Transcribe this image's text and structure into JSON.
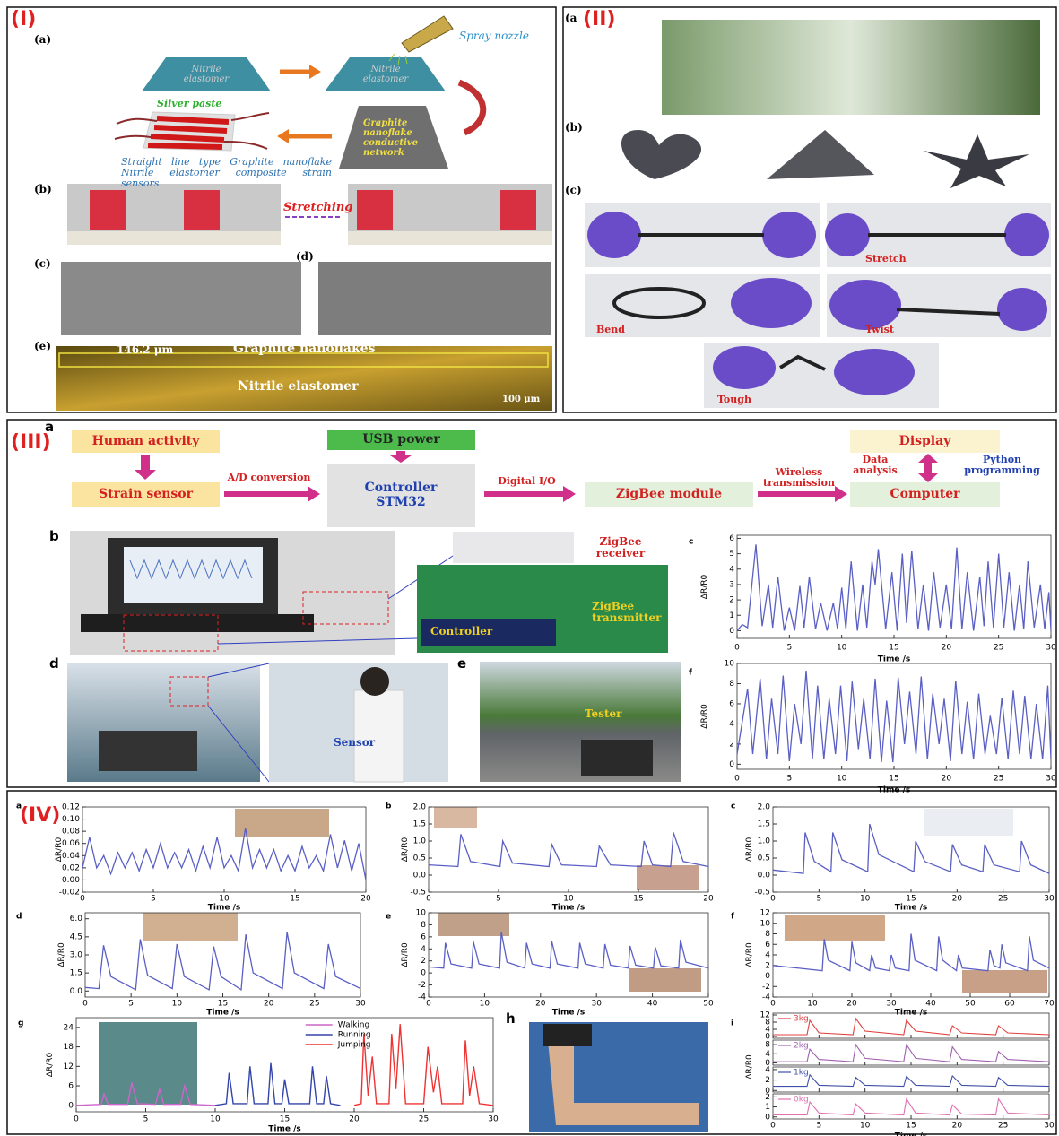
{
  "panel_1": {
    "tag": "(I)",
    "a": "(a)",
    "nitrile_1": "Nitrile elastomer",
    "nitrile_2": "Nitrile elastomer",
    "nozzle": "Spray nozzle",
    "network": "Graphite nanoflake conductive network",
    "silver": "Silver paste",
    "sensor": "Straight line type Graphite nanoflake Nitrile elastomer composite strain sensors",
    "b": "(b)",
    "stretching": "Stretching",
    "c": "(c)",
    "d": "(d)",
    "e": "(e)",
    "thickness": "146.2 μm",
    "layer_top": "Graphite nanoflakes",
    "layer_bottom": "Nitrile elastomer",
    "scale": "100 μm"
  },
  "panel_2": {
    "a": "(a",
    "tag": "(II)",
    "b": "(b)",
    "c": "(c)",
    "stretch": "Stretch",
    "bend": "Bend",
    "twist": "Twist",
    "tough": "Tough"
  },
  "panel_3": {
    "tag": "(III)",
    "a": "a",
    "human_activity": "Human activity",
    "strain_sensor": "Strain sensor",
    "ad": "A/D conversion",
    "usb": "USB power",
    "controller_box": "Controller STM32",
    "digital": "Digital I/O",
    "zigbee_module": "ZigBee module",
    "wireless": "Wireless transmission",
    "display": "Display",
    "data_analysis": "Data analysis",
    "python": "Python programming",
    "computer": "Computer",
    "b": "b",
    "zigbee_receiver": "ZigBee receiver",
    "controller": "Controller",
    "zigbee_transmitter": "ZigBee transmitter",
    "d": "d",
    "sensor": "Sensor",
    "e": "e",
    "tester": "Tester"
  },
  "panel_4": {
    "tag": "(IV)",
    "h": "h"
  },
  "chart_data": [
    {
      "type": "line",
      "label": "c",
      "ylabel": "ΔR/R0",
      "xlabel": "Time /s",
      "color": "#5a5fc4",
      "xlim": [
        0,
        30
      ],
      "xticks": [
        0,
        5,
        10,
        15,
        20,
        25,
        30
      ],
      "ylim": [
        -0.5,
        6.2
      ],
      "yticks": [
        0,
        1,
        2,
        3,
        4,
        5,
        6
      ],
      "x": [
        0,
        0.5,
        1,
        1.8,
        2.4,
        3,
        3.4,
        3.9,
        4.5,
        5,
        5.5,
        6,
        6.4,
        6.9,
        7.5,
        8,
        8.6,
        9.2,
        9.6,
        10,
        10.4,
        10.9,
        11.5,
        12,
        12.4,
        12.9,
        13.2,
        13.5,
        14.2,
        14.8,
        15.3,
        15.8,
        16.2,
        16.7,
        17.3,
        17.8,
        18.3,
        18.8,
        19.4,
        20,
        20.5,
        21,
        21.5,
        22,
        22.6,
        23.2,
        23.6,
        24,
        24.5,
        25,
        25.5,
        26,
        26.5,
        27,
        27.4,
        27.8,
        28.4,
        29,
        29.4,
        29.8,
        30
      ],
      "values": [
        0,
        0.4,
        0.2,
        5.6,
        0.3,
        3.0,
        0.2,
        3.5,
        0,
        1.5,
        0,
        2.9,
        0.2,
        3.5,
        0.1,
        1.8,
        0,
        1.8,
        0.1,
        2.8,
        0.1,
        4.5,
        0,
        3.0,
        0.2,
        4.5,
        3.0,
        5.3,
        0.1,
        3.8,
        0,
        5.0,
        0.5,
        5.2,
        0.1,
        3.0,
        0,
        3.8,
        0.2,
        3.0,
        0.1,
        5.4,
        0.1,
        3.8,
        0,
        3.5,
        0.3,
        4.5,
        0.2,
        5.0,
        0.2,
        3.8,
        0,
        3.0,
        0.1,
        4.5,
        0.2,
        3.0,
        0.1,
        2.5,
        0
      ]
    },
    {
      "type": "line",
      "label": "f",
      "ylabel": "ΔR/R0",
      "xlabel": "Time /s",
      "color": "#5a5fc4",
      "xlim": [
        0,
        30
      ],
      "xticks": [
        0,
        5,
        10,
        15,
        20,
        25,
        30
      ],
      "ylim": [
        -0.5,
        10
      ],
      "yticks": [
        0,
        2,
        4,
        6,
        8,
        10
      ],
      "x": [
        0,
        1,
        1.5,
        2.2,
        2.8,
        3.3,
        3.9,
        4.4,
        5,
        5.5,
        6.1,
        6.6,
        7.2,
        7.7,
        8.3,
        8.8,
        9.4,
        9.9,
        10.5,
        11,
        11.6,
        12.1,
        12.7,
        13.2,
        13.8,
        14.3,
        14.9,
        15.4,
        16,
        16.5,
        17.1,
        17.6,
        18.2,
        18.7,
        19.3,
        19.8,
        20.4,
        20.9,
        21.5,
        22,
        22.6,
        23.1,
        23.7,
        24.2,
        24.8,
        25.3,
        25.9,
        26.4,
        27,
        27.5,
        28.1,
        28.6,
        29.2,
        29.7,
        30
      ],
      "values": [
        1,
        7.5,
        1,
        8.5,
        0.5,
        6.5,
        1,
        8.8,
        0.3,
        6.0,
        2,
        9.3,
        0.5,
        7.8,
        0.5,
        6.5,
        1,
        7.8,
        0.3,
        8.2,
        1.5,
        6.5,
        0.5,
        8.5,
        0.2,
        6.3,
        0.2,
        8.6,
        2,
        7.2,
        1,
        8.7,
        0.5,
        7.0,
        2,
        6.5,
        0.3,
        8.3,
        1,
        6.2,
        0.5,
        7.0,
        1,
        4.8,
        1,
        6.6,
        0.5,
        7.3,
        1,
        6.8,
        0.5,
        6.0,
        0.5,
        7.8,
        0.5
      ]
    },
    {
      "type": "line",
      "label": "a",
      "ylabel": "ΔR/R0",
      "xlabel": "Time /s",
      "color": "#5a5fc4",
      "xlim": [
        0,
        20
      ],
      "xticks": [
        0,
        5,
        10,
        15,
        20
      ],
      "ylim": [
        -0.02,
        0.12
      ],
      "yticks": [
        -0.02,
        {
          "value": 0,
          "label": "0.00"
        },
        0.02,
        0.04,
        0.06,
        0.08,
        {
          "value": 0.1,
          "label": "0.10"
        },
        0.12
      ],
      "x": [
        0,
        0.5,
        1,
        1.5,
        2,
        2.5,
        3,
        3.5,
        4,
        4.5,
        5,
        5.5,
        6,
        6.5,
        7,
        7.5,
        8,
        8.5,
        9,
        9.5,
        10,
        10.5,
        11,
        11.5,
        12,
        12.5,
        13,
        13.5,
        14,
        14.5,
        15,
        15.5,
        16,
        16.5,
        17,
        17.5,
        18,
        18.5,
        19,
        19.5,
        20
      ],
      "values": [
        0.02,
        0.07,
        0.02,
        0.04,
        0.01,
        0.045,
        0.02,
        0.045,
        0.015,
        0.05,
        0.02,
        0.06,
        0.02,
        0.045,
        0.02,
        0.05,
        0.015,
        0.055,
        0.02,
        0.07,
        0.02,
        0.04,
        0.015,
        0.085,
        0.02,
        0.05,
        0.02,
        0.05,
        0.015,
        0.04,
        0.015,
        0.055,
        0.02,
        0.04,
        0.015,
        0.075,
        0.02,
        0.065,
        0.015,
        0.06,
        0
      ]
    },
    {
      "type": "line",
      "label": "b",
      "ylabel": "ΔR/R0",
      "xlabel": "Time /s",
      "color": "#5a5fc4",
      "xlim": [
        0,
        20
      ],
      "xticks": [
        0,
        5,
        10,
        15,
        20
      ],
      "ylim": [
        -0.5,
        2
      ],
      "yticks": [
        -0.5,
        {
          "value": 0,
          "label": "0.0"
        },
        0.5,
        {
          "value": 1,
          "label": "1.0"
        },
        1.5,
        {
          "value": 2,
          "label": "2.0"
        }
      ],
      "x": [
        0,
        2.1,
        2.3,
        3,
        5.1,
        5.3,
        6,
        8.6,
        8.8,
        9.5,
        12,
        12.2,
        13,
        15.2,
        15.4,
        16,
        17.3,
        17.5,
        18.2,
        20
      ],
      "values": [
        0.3,
        0.25,
        1.2,
        0.4,
        0.25,
        1.0,
        0.35,
        0.25,
        0.9,
        0.3,
        0.25,
        0.85,
        0.3,
        0.25,
        1.0,
        0.3,
        0.25,
        1.25,
        0.4,
        0.25
      ]
    },
    {
      "type": "line",
      "label": "c",
      "ylabel": "ΔR/R0",
      "xlabel": "Time /s",
      "color": "#5a5fc4",
      "xlim": [
        0,
        30
      ],
      "xticks": [
        0,
        5,
        10,
        15,
        20,
        25,
        30
      ],
      "ylim": [
        -0.5,
        2
      ],
      "yticks": [
        -0.5,
        {
          "value": 0,
          "label": "0.0"
        },
        0.5,
        {
          "value": 1,
          "label": "1.0"
        },
        1.5,
        {
          "value": 2,
          "label": "2.0"
        }
      ],
      "x": [
        0,
        3.3,
        3.5,
        4.5,
        6.3,
        6.5,
        7.5,
        10.3,
        10.5,
        11.5,
        15.3,
        15.5,
        16.5,
        19.3,
        19.5,
        20.5,
        22.8,
        23,
        24,
        26.8,
        27,
        28,
        30
      ],
      "values": [
        0.15,
        0.05,
        1.25,
        0.4,
        0.1,
        1.25,
        0.45,
        0.1,
        1.5,
        0.6,
        0.1,
        1.0,
        0.4,
        0.1,
        0.9,
        0.3,
        0.1,
        0.9,
        0.3,
        0.1,
        1.0,
        0.3,
        0.05
      ]
    },
    {
      "type": "line",
      "label": "d",
      "ylabel": "ΔR/R0",
      "xlabel": "Time /s",
      "color": "#5a5fc4",
      "xlim": [
        0,
        30
      ],
      "xticks": [
        0,
        5,
        10,
        15,
        20,
        25,
        30
      ],
      "ylim": [
        -0.5,
        6.5
      ],
      "yticks": [
        {
          "value": 0,
          "label": "0.0"
        },
        1.5,
        {
          "value": 3,
          "label": "3.0"
        },
        4.5,
        {
          "value": 6,
          "label": "6.0"
        }
      ],
      "x": [
        0,
        1.5,
        2,
        2.8,
        5.5,
        6,
        6.8,
        9.5,
        10,
        10.8,
        13.5,
        14,
        14.8,
        17,
        17.5,
        18.3,
        21.5,
        22,
        22.8,
        26,
        26.5,
        27.3,
        30
      ],
      "values": [
        0.3,
        0.2,
        3.8,
        1.2,
        0.1,
        4.3,
        1.3,
        0.2,
        3.9,
        1.2,
        0.1,
        3.7,
        1.2,
        0.1,
        4.7,
        1.5,
        0.2,
        4.9,
        1.5,
        0.2,
        3.9,
        1.2,
        0.2
      ]
    },
    {
      "type": "line",
      "label": "e",
      "ylabel": "ΔR/R0",
      "xlabel": "Time /s",
      "color": "#5a5fc4",
      "xlim": [
        0,
        50
      ],
      "xticks": [
        0,
        10,
        20,
        30,
        40,
        50
      ],
      "ylim": [
        -4,
        10
      ],
      "yticks": [
        -4,
        -2,
        0,
        2,
        4,
        6,
        8,
        10
      ],
      "x": [
        0,
        2.7,
        3,
        4,
        7.7,
        8,
        9,
        12.7,
        13,
        14,
        17.2,
        17.5,
        18.5,
        21.7,
        22,
        23,
        26.7,
        27,
        28,
        31.2,
        31.5,
        32.5,
        35.7,
        36,
        37,
        40.2,
        40.5,
        41.5,
        44.7,
        45,
        46,
        50
      ],
      "values": [
        1,
        0.8,
        5,
        1.5,
        0.8,
        5.2,
        1.5,
        0.8,
        6.8,
        1.8,
        0.8,
        5.0,
        1.5,
        0.8,
        5.3,
        1.5,
        0.8,
        5.0,
        1.5,
        0.8,
        4.8,
        1.3,
        0.8,
        4.5,
        1.3,
        0.8,
        4.3,
        1.2,
        0.8,
        5.5,
        1.8,
        0.8
      ]
    },
    {
      "type": "line",
      "label": "f",
      "ylabel": "ΔR/R0",
      "xlabel": "Time /s",
      "color": "#5a5fc4",
      "xlim": [
        0,
        70
      ],
      "xticks": [
        0,
        10,
        20,
        30,
        40,
        50,
        60,
        70
      ],
      "ylim": [
        -4,
        12
      ],
      "yticks": [
        -4,
        -2,
        0,
        2,
        4,
        6,
        8,
        10,
        12
      ],
      "x": [
        0,
        12.5,
        13,
        14,
        19.5,
        20,
        21,
        24.5,
        25,
        26,
        29.5,
        30,
        31,
        34.5,
        35,
        36,
        41.5,
        42,
        43,
        46.5,
        47,
        48,
        54.5,
        55,
        56,
        57.5,
        58,
        59,
        64.5,
        65,
        66,
        70
      ],
      "values": [
        2,
        1,
        7,
        3,
        1,
        6.5,
        2.5,
        1,
        4,
        1.5,
        1,
        4,
        1.5,
        1,
        8,
        3,
        1,
        7.5,
        3,
        1,
        4,
        1.5,
        1,
        5,
        2,
        1.5,
        6,
        2.5,
        1,
        7.5,
        3,
        1.5
      ]
    },
    {
      "type": "line",
      "label": "g",
      "ylabel": "ΔR/R0",
      "xlabel": "Time /s",
      "xlim": [
        0,
        30
      ],
      "xticks": [
        0,
        5,
        10,
        15,
        20,
        25,
        30
      ],
      "ylim": [
        -2,
        27
      ],
      "yticks": [
        0,
        6,
        12,
        18,
        24
      ],
      "series": [
        {
          "name": "Walking",
          "color": "#cc66cc",
          "x": [
            0,
            1.8,
            2,
            2.3,
            3.7,
            4,
            4.4,
            5.7,
            6,
            6.3,
            7.5,
            7.8,
            8.2,
            10
          ],
          "values": [
            0,
            0.3,
            3.5,
            0.3,
            0.3,
            7,
            0.5,
            0.3,
            5,
            0.3,
            0.3,
            6,
            0.3,
            0
          ]
        },
        {
          "name": "Running",
          "color": "#3344aa",
          "x": [
            10,
            10.8,
            11,
            11.3,
            12.3,
            12.5,
            12.8,
            13.8,
            14,
            14.3,
            14.8,
            15,
            15.3,
            16.8,
            17,
            17.3,
            17.8,
            18,
            18.3,
            19
          ],
          "values": [
            0,
            0.5,
            10,
            0.5,
            0.5,
            12,
            0.5,
            0.5,
            13,
            0.5,
            0.5,
            8,
            0.5,
            0.5,
            12,
            0.5,
            0.5,
            9,
            0.5,
            0
          ]
        },
        {
          "name": "Jumping",
          "color": "#ee3333",
          "x": [
            20,
            20.5,
            20.7,
            21,
            21.3,
            21.6,
            22.5,
            22.7,
            23,
            23.3,
            23.7,
            25,
            25.3,
            25.7,
            26,
            26.3,
            27.8,
            28,
            28.3,
            28.6,
            29,
            30
          ],
          "values": [
            0,
            0.5,
            22,
            3,
            15,
            0.5,
            0.5,
            22,
            5,
            25,
            0.5,
            0.5,
            18,
            4,
            12,
            0.5,
            0.5,
            20,
            3,
            12,
            0.5,
            0
          ]
        }
      ]
    },
    {
      "type": "stacked_line",
      "label": "i",
      "ylabel": "ΔR/R0",
      "xlabel": "Time /s",
      "xlim": [
        0,
        30
      ],
      "xticks": [
        0,
        5,
        10,
        15,
        20,
        25,
        30
      ],
      "series": [
        {
          "name": "3kg",
          "color": "#e04040",
          "ylim": [
            -1,
            13
          ],
          "yticks": [
            0,
            4,
            8,
            12
          ],
          "x": [
            0,
            3.7,
            4,
            5,
            8.7,
            9,
            10,
            14.2,
            14.5,
            15.5,
            19.2,
            19.5,
            20.5,
            24.2,
            24.5,
            25.5,
            30
          ],
          "values": [
            1,
            1,
            9,
            2,
            1,
            10,
            3,
            1,
            9,
            3,
            1,
            6,
            2,
            1,
            6,
            2,
            1
          ]
        },
        {
          "name": "2kg",
          "color": "#a060b0",
          "ylim": [
            -1,
            10
          ],
          "yticks": [
            0,
            4,
            8
          ],
          "x": [
            0,
            3.7,
            4,
            5,
            8.7,
            9,
            10,
            14.2,
            14.5,
            15.5,
            19.2,
            19.5,
            20.5,
            24.2,
            24.5,
            25.5,
            30
          ],
          "values": [
            0.5,
            0.5,
            6,
            1.5,
            0.5,
            8,
            2,
            0.5,
            8,
            2,
            0.5,
            7,
            1.5,
            0.5,
            5,
            1.5,
            0.5
          ]
        },
        {
          "name": "1kg",
          "color": "#4050a8",
          "ylim": [
            -0.3,
            4.5
          ],
          "yticks": [
            0,
            2,
            4
          ],
          "x": [
            0,
            3.7,
            4,
            5,
            8.7,
            9,
            10,
            14.2,
            14.5,
            15.5,
            19.2,
            19.5,
            20.5,
            24.2,
            24.5,
            25.5,
            30
          ],
          "values": [
            0.8,
            0.8,
            3,
            1,
            0.8,
            2.5,
            1,
            0.8,
            2.7,
            1,
            0.8,
            2.8,
            1,
            0.8,
            2.5,
            1,
            0.8
          ]
        },
        {
          "name": "0kg",
          "color": "#e070b0",
          "ylim": [
            -0.2,
            2.3
          ],
          "yticks": [
            0,
            1,
            2
          ],
          "x": [
            0,
            3.7,
            4,
            5,
            8.7,
            9,
            10,
            14.2,
            14.5,
            15.5,
            19.2,
            19.5,
            20.5,
            24.2,
            24.5,
            25.5,
            30
          ],
          "values": [
            0.2,
            0.2,
            1.5,
            0.4,
            0.2,
            1.3,
            0.4,
            0.2,
            1.8,
            0.4,
            0.2,
            1.2,
            0.3,
            0.2,
            1.8,
            0.4,
            0.2
          ]
        }
      ]
    }
  ]
}
